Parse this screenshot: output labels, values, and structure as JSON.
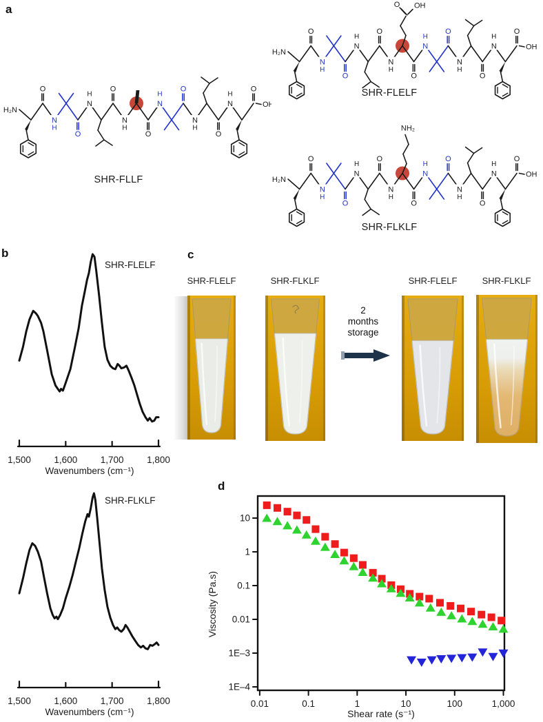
{
  "figure": {
    "panel_labels": {
      "a": "a",
      "b": "b",
      "c": "c",
      "d": "d"
    }
  },
  "panel_a": {
    "structures": [
      {
        "id": "fllf",
        "label": "SHR-FLLF",
        "central": "ala"
      },
      {
        "id": "flelf",
        "label": "SHR-FLELF",
        "central": "glu"
      },
      {
        "id": "flklf",
        "label": "SHR-FLKLF",
        "central": "lys"
      }
    ],
    "labels": {
      "h2n": "H₂N",
      "n": "N",
      "h": "H",
      "nh": "NH",
      "o": "O",
      "oh": "OH",
      "nh2": "NH₂"
    },
    "colors": {
      "bond": "#1a1a1a",
      "aib": "#2233cc",
      "highlight": "#c7483a"
    }
  },
  "panel_c": {
    "tubes": [
      {
        "label": "SHR-FLELF",
        "state": "uniform"
      },
      {
        "label": "SHR-FLKLF",
        "state": "uniform-bright"
      },
      {
        "label": "SHR-FLELF",
        "state": "uniform-aged"
      },
      {
        "label": "SHR-FLKLF",
        "state": "separated"
      }
    ],
    "arrow_lines": [
      "2",
      "months",
      "storage"
    ],
    "colors": {
      "background_top": "#e6ac10",
      "background_bottom": "#c78e03",
      "tube_white": "#eaece7",
      "cap_amber": "#c9a23c",
      "separated_orange": "#e3b873",
      "arrow": "#1d3349",
      "arrow_tail": "#93a0ad"
    }
  },
  "chart_data": [
    {
      "type": "line",
      "title": "SHR-FLELF",
      "xlabel": "Wavenumbers (cm⁻¹)",
      "x_ticks": [
        "1,500",
        "1,600",
        "1,700",
        "1,800"
      ],
      "x_tick_values": [
        1500,
        1600,
        1700,
        1800
      ],
      "xlim": [
        1500,
        1800
      ],
      "grid": false,
      "line_color": "#111111",
      "points": [
        [
          1500,
          0.38
        ],
        [
          1508,
          0.46
        ],
        [
          1515,
          0.55
        ],
        [
          1522,
          0.62
        ],
        [
          1530,
          0.67
        ],
        [
          1536,
          0.655
        ],
        [
          1540,
          0.64
        ],
        [
          1547,
          0.6
        ],
        [
          1552,
          0.55
        ],
        [
          1560,
          0.44
        ],
        [
          1570,
          0.3
        ],
        [
          1578,
          0.235
        ],
        [
          1583,
          0.215
        ],
        [
          1587,
          0.2
        ],
        [
          1590,
          0.215
        ],
        [
          1594,
          0.205
        ],
        [
          1600,
          0.25
        ],
        [
          1610,
          0.33
        ],
        [
          1620,
          0.46
        ],
        [
          1628,
          0.57
        ],
        [
          1635,
          0.7
        ],
        [
          1641,
          0.78
        ],
        [
          1646,
          0.85
        ],
        [
          1650,
          0.89
        ],
        [
          1654,
          0.955
        ],
        [
          1658,
          1.0
        ],
        [
          1662,
          0.985
        ],
        [
          1666,
          0.9
        ],
        [
          1672,
          0.76
        ],
        [
          1678,
          0.6
        ],
        [
          1684,
          0.46
        ],
        [
          1690,
          0.385
        ],
        [
          1696,
          0.35
        ],
        [
          1702,
          0.335
        ],
        [
          1707,
          0.33
        ],
        [
          1712,
          0.36
        ],
        [
          1716,
          0.35
        ],
        [
          1720,
          0.335
        ],
        [
          1726,
          0.34
        ],
        [
          1731,
          0.35
        ],
        [
          1736,
          0.32
        ],
        [
          1742,
          0.28
        ],
        [
          1748,
          0.235
        ],
        [
          1754,
          0.18
        ],
        [
          1760,
          0.125
        ],
        [
          1766,
          0.08
        ],
        [
          1772,
          0.05
        ],
        [
          1777,
          0.03
        ],
        [
          1781,
          0.045
        ],
        [
          1786,
          0.025
        ],
        [
          1791,
          0.03
        ],
        [
          1795,
          0.05
        ],
        [
          1800,
          0.05
        ]
      ]
    },
    {
      "type": "line",
      "title": "SHR-FLKLF",
      "xlabel": "Wavenumbers (cm⁻¹)",
      "x_ticks": [
        "1,500",
        "1,600",
        "1,700",
        "1,800"
      ],
      "x_tick_values": [
        1500,
        1600,
        1700,
        1800
      ],
      "xlim": [
        1500,
        1800
      ],
      "grid": false,
      "line_color": "#111111",
      "points": [
        [
          1500,
          0.4
        ],
        [
          1508,
          0.49
        ],
        [
          1515,
          0.58
        ],
        [
          1522,
          0.66
        ],
        [
          1528,
          0.7
        ],
        [
          1534,
          0.685
        ],
        [
          1540,
          0.65
        ],
        [
          1547,
          0.59
        ],
        [
          1553,
          0.5
        ],
        [
          1560,
          0.4
        ],
        [
          1567,
          0.31
        ],
        [
          1572,
          0.27
        ],
        [
          1576,
          0.25
        ],
        [
          1580,
          0.26
        ],
        [
          1583,
          0.245
        ],
        [
          1588,
          0.27
        ],
        [
          1594,
          0.31
        ],
        [
          1600,
          0.37
        ],
        [
          1608,
          0.44
        ],
        [
          1615,
          0.51
        ],
        [
          1622,
          0.59
        ],
        [
          1629,
          0.67
        ],
        [
          1636,
          0.76
        ],
        [
          1642,
          0.83
        ],
        [
          1647,
          0.875
        ],
        [
          1650,
          0.86
        ],
        [
          1654,
          0.91
        ],
        [
          1658,
          0.975
        ],
        [
          1661,
          1.0
        ],
        [
          1664,
          0.96
        ],
        [
          1668,
          0.85
        ],
        [
          1673,
          0.7
        ],
        [
          1678,
          0.55
        ],
        [
          1684,
          0.42
        ],
        [
          1690,
          0.32
        ],
        [
          1696,
          0.255
        ],
        [
          1702,
          0.21
        ],
        [
          1707,
          0.185
        ],
        [
          1711,
          0.195
        ],
        [
          1715,
          0.18
        ],
        [
          1720,
          0.17
        ],
        [
          1725,
          0.185
        ],
        [
          1729,
          0.21
        ],
        [
          1733,
          0.195
        ],
        [
          1738,
          0.17
        ],
        [
          1744,
          0.14
        ],
        [
          1750,
          0.115
        ],
        [
          1756,
          0.09
        ],
        [
          1762,
          0.075
        ],
        [
          1767,
          0.085
        ],
        [
          1772,
          0.07
        ],
        [
          1777,
          0.065
        ],
        [
          1782,
          0.09
        ],
        [
          1787,
          0.085
        ],
        [
          1792,
          0.095
        ],
        [
          1796,
          0.105
        ],
        [
          1800,
          0.09
        ]
      ]
    },
    {
      "type": "scatter",
      "xlabel": "Shear rate (s⁻¹)",
      "ylabel": "Viscosity (Pa.s)",
      "xscale": "log",
      "yscale": "log",
      "xlim": [
        0.0091,
        1050
      ],
      "ylim": [
        7.9e-05,
        45
      ],
      "x_ticks": [
        "0.01",
        "0.1",
        "1",
        "10",
        "100",
        "1,000"
      ],
      "x_tick_values": [
        0.01,
        0.1,
        1,
        10,
        100,
        1000
      ],
      "y_ticks": [
        "10",
        "1",
        "0.1",
        "0.01",
        "1E–3",
        "1E–4"
      ],
      "y_tick_values": [
        10,
        1,
        0.1,
        0.01,
        0.001,
        0.0001
      ],
      "grid": false,
      "legend": "none",
      "series": [
        {
          "name": "red-squares",
          "marker": "square",
          "color": "#ee1c1c",
          "points": [
            [
              0.014,
              24
            ],
            [
              0.023,
              20
            ],
            [
              0.037,
              15.5
            ],
            [
              0.058,
              12
            ],
            [
              0.091,
              8.8
            ],
            [
              0.14,
              4.7
            ],
            [
              0.22,
              2.8
            ],
            [
              0.35,
              1.7
            ],
            [
              0.54,
              0.95
            ],
            [
              0.85,
              0.65
            ],
            [
              1.3,
              0.41
            ],
            [
              2.1,
              0.24
            ],
            [
              3.2,
              0.16
            ],
            [
              5.0,
              0.103
            ],
            [
              7.8,
              0.078
            ],
            [
              12,
              0.057
            ],
            [
              19,
              0.047
            ],
            [
              30,
              0.041
            ],
            [
              50,
              0.031
            ],
            [
              82,
              0.025
            ],
            [
              133,
              0.021
            ],
            [
              217,
              0.017
            ],
            [
              355,
              0.0138
            ],
            [
              568,
              0.0115
            ],
            [
              912,
              0.0092
            ]
          ]
        },
        {
          "name": "green-up-triangles",
          "marker": "triangle-up",
          "color": "#2fd32f",
          "points": [
            [
              0.014,
              10
            ],
            [
              0.023,
              8.0
            ],
            [
              0.037,
              6.0
            ],
            [
              0.058,
              4.5
            ],
            [
              0.091,
              3.2
            ],
            [
              0.14,
              2.1
            ],
            [
              0.22,
              1.38
            ],
            [
              0.35,
              0.85
            ],
            [
              0.54,
              0.55
            ],
            [
              0.85,
              0.37
            ],
            [
              1.3,
              0.25
            ],
            [
              2.1,
              0.17
            ],
            [
              3.2,
              0.115
            ],
            [
              5.0,
              0.082
            ],
            [
              7.8,
              0.06
            ],
            [
              12,
              0.044
            ],
            [
              19,
              0.031
            ],
            [
              32,
              0.022
            ],
            [
              53,
              0.0165
            ],
            [
              86,
              0.013
            ],
            [
              141,
              0.0105
            ],
            [
              230,
              0.0088
            ],
            [
              376,
              0.0073
            ],
            [
              613,
              0.0061
            ],
            [
              1000,
              0.0052
            ]
          ]
        },
        {
          "name": "blue-down-triangles",
          "marker": "triangle-down",
          "color": "#2424d9",
          "points": [
            [
              13,
              0.00062
            ],
            [
              21,
              0.00053
            ],
            [
              34,
              0.00062
            ],
            [
              53,
              0.00067
            ],
            [
              86,
              0.00069
            ],
            [
              141,
              0.00072
            ],
            [
              230,
              0.00075
            ],
            [
              376,
              0.00106
            ],
            [
              614,
              0.00078
            ],
            [
              1000,
              0.00099
            ]
          ]
        }
      ]
    }
  ]
}
